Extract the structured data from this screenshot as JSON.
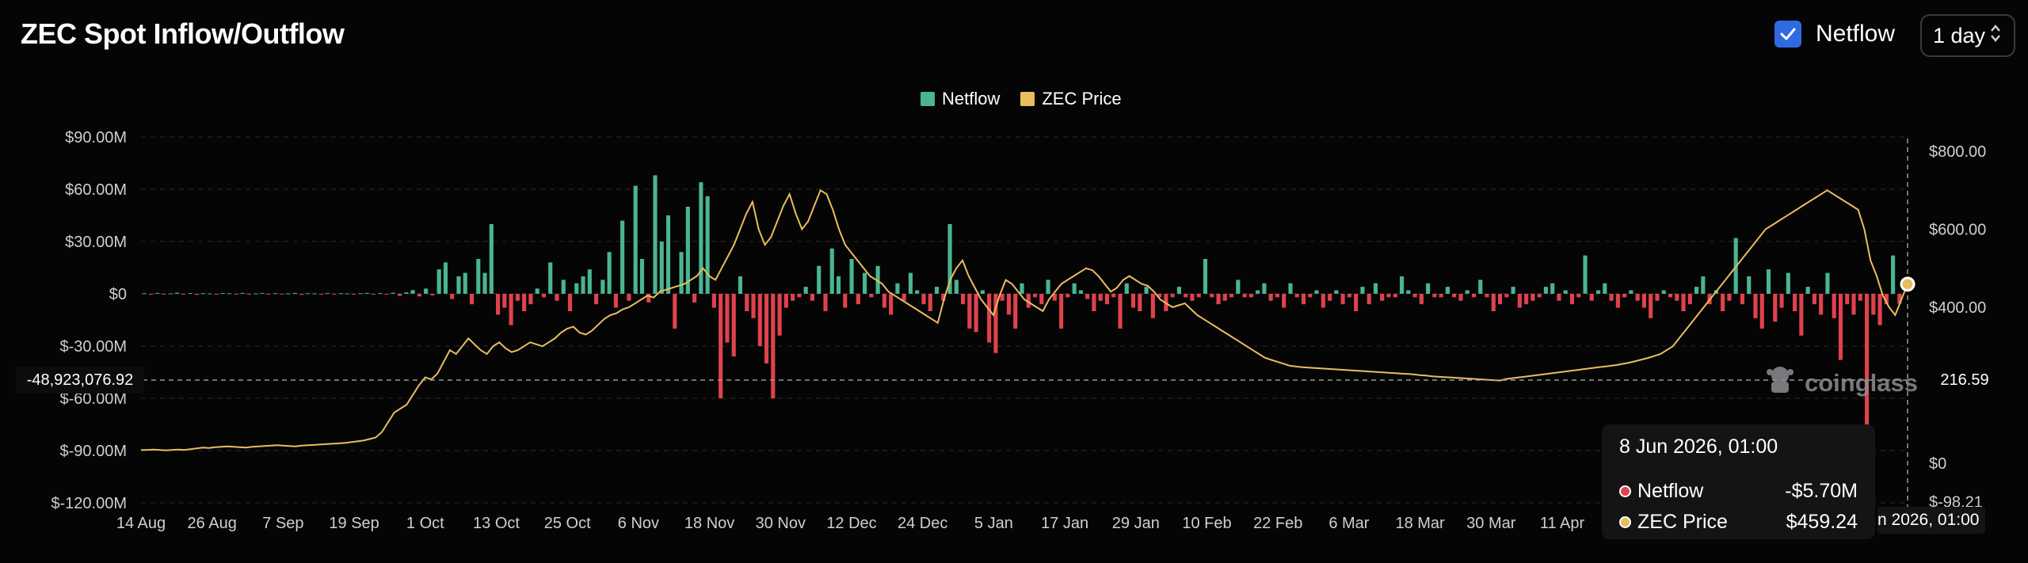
{
  "header": {
    "title": "ZEC Spot Inflow/Outflow",
    "netflow_toggle_label": "Netflow",
    "interval_value": "1 day"
  },
  "legend": {
    "netflow_label": "Netflow",
    "price_label": "ZEC Price"
  },
  "colors": {
    "inflow": "#4ab591",
    "outflow": "#e0424c",
    "price": "#e9bd5f",
    "accent": "#2f6be0"
  },
  "watermark": "coinglass",
  "cursor": {
    "left_value": "-48,923,076.92",
    "right_value": "216.59",
    "time_label": "n 2026, 01:00"
  },
  "tooltip": {
    "time": "8 Jun 2026, 01:00",
    "rows": [
      {
        "name": "Netflow",
        "value": "-$5.70M"
      },
      {
        "name": "ZEC Price",
        "value": "$459.24"
      }
    ]
  },
  "chart_data": {
    "type": "bar",
    "left_axis_ticks": [
      {
        "value": 90,
        "label": "$90.00M"
      },
      {
        "value": 60,
        "label": "$60.00M"
      },
      {
        "value": 30,
        "label": "$30.00M"
      },
      {
        "value": 0,
        "label": "$0"
      },
      {
        "value": -30,
        "label": "$-30.00M"
      },
      {
        "value": -60,
        "label": "$-60.00M"
      },
      {
        "value": -90,
        "label": "$-90.00M"
      },
      {
        "value": -120,
        "label": "$-120.00M"
      }
    ],
    "right_axis_ticks": [
      {
        "value": 800,
        "label": "$800.00"
      },
      {
        "value": 600,
        "label": "$600.00"
      },
      {
        "value": 400,
        "label": "$400.00"
      },
      {
        "value": 0,
        "label": "$0"
      },
      {
        "value": -98.21,
        "label": "$-98.21"
      }
    ],
    "x_ticks": [
      "14 Aug",
      "26 Aug",
      "7 Sep",
      "19 Sep",
      "1 Oct",
      "13 Oct",
      "25 Oct",
      "6 Nov",
      "18 Nov",
      "30 Nov",
      "12 Dec",
      "24 Dec",
      "5 Jan",
      "17 Jan",
      "29 Jan",
      "10 Feb",
      "22 Feb",
      "6 Mar",
      "18 Mar",
      "30 Mar",
      "11 Apr"
    ],
    "netflow_series": {
      "name": "Netflow",
      "unit": "M USD",
      "values": [
        0.3,
        -0.2,
        0.5,
        -0.4,
        0.2,
        0.6,
        -0.3,
        0.4,
        -0.6,
        0.3,
        0.2,
        -0.5,
        0.4,
        0.3,
        -0.2,
        0.5,
        -0.3,
        0.2,
        0.4,
        -0.2,
        0.3,
        -0.4,
        0.2,
        0.5,
        -0.6,
        0.3,
        0.2,
        -0.3,
        0.4,
        -0.2,
        0.3,
        0.2,
        -0.4,
        0.3,
        0.5,
        -0.2,
        0.4,
        -0.3,
        0.6,
        -1.2,
        0.8,
        2.1,
        -1.5,
        3.0,
        -0.9,
        14.0,
        18.0,
        -3.0,
        10.0,
        12.0,
        -6.0,
        20.0,
        12.0,
        40.0,
        -12.0,
        -8.0,
        -18.0,
        -4.0,
        -10.0,
        -6.0,
        3.0,
        -2.0,
        18.0,
        -4.0,
        8.0,
        -10.0,
        6.0,
        10.0,
        14.0,
        -6.0,
        8.0,
        24.0,
        -8.0,
        42.0,
        -4.0,
        62.0,
        20.0,
        -5.0,
        68.0,
        30.0,
        45.0,
        -20.0,
        24.0,
        50.0,
        -5.0,
        64.0,
        56.0,
        -8.0,
        -60.0,
        -28.0,
        -36.0,
        10.0,
        -10.0,
        -14.0,
        -30.0,
        -40.0,
        -60.0,
        -24.0,
        -8.0,
        -4.0,
        -2.0,
        4.0,
        -4.0,
        16.0,
        -10.0,
        26.0,
        10.0,
        -8.0,
        20.0,
        -6.0,
        12.0,
        -2.0,
        16.0,
        -8.0,
        -12.0,
        6.0,
        -4.0,
        12.0,
        2.0,
        -6.0,
        -10.0,
        4.0,
        -4.0,
        40.0,
        8.0,
        -6.0,
        -20.0,
        -22.0,
        2.0,
        -28.0,
        -34.0,
        -4.0,
        -12.0,
        -20.0,
        6.0,
        -8.0,
        -2.0,
        -6.0,
        8.0,
        -4.0,
        -20.0,
        -2.0,
        6.0,
        2.0,
        -3.0,
        -10.0,
        -4.0,
        -6.0,
        -2.0,
        -20.0,
        6.0,
        -8.0,
        -10.0,
        4.0,
        -14.0,
        -2.0,
        -10.0,
        -2.0,
        4.0,
        -2.0,
        -4.0,
        -2.0,
        20.0,
        -2.0,
        -6.0,
        -4.0,
        -2.0,
        8.0,
        -2.0,
        -2.0,
        2.0,
        6.0,
        -4.0,
        -2.0,
        -8.0,
        6.0,
        -2.0,
        -6.0,
        -2.0,
        2.0,
        -8.0,
        -4.0,
        2.0,
        -6.0,
        -2.0,
        -10.0,
        4.0,
        -6.0,
        6.0,
        -4.0,
        -2.0,
        -2.0,
        10.0,
        2.0,
        -2.0,
        -6.0,
        6.0,
        -2.0,
        -2.0,
        4.0,
        -2.0,
        -4.0,
        2.0,
        -2.0,
        8.0,
        -2.0,
        -10.0,
        -6.0,
        -2.0,
        4.0,
        -8.0,
        -6.0,
        -4.0,
        -2.0,
        4.0,
        6.0,
        -4.0,
        2.0,
        -6.0,
        -2.0,
        22.0,
        -4.0,
        2.0,
        6.0,
        -4.0,
        -8.0,
        -2.0,
        2.0,
        -4.0,
        -8.0,
        -14.0,
        -4.0,
        2.0,
        -2.0,
        -4.0,
        -10.0,
        -6.0,
        4.0,
        10.0,
        -6.0,
        2.0,
        -10.0,
        -4.0,
        32.0,
        -6.0,
        10.0,
        -14.0,
        -20.0,
        14.0,
        -16.0,
        -8.0,
        12.0,
        -10.0,
        -24.0,
        4.0,
        -6.0,
        -12.0,
        12.0,
        -14.0,
        -38.0,
        -6.0,
        -12.0,
        -4.0,
        -100.0,
        -12.0,
        -18.0,
        -6.0,
        22.0,
        -5.7
      ],
      "positive_color": "inflow",
      "negative_color": "outflow"
    },
    "price_series": {
      "name": "ZEC Price",
      "unit": "USD",
      "values": [
        34,
        34,
        35,
        34,
        33,
        34,
        35,
        34,
        36,
        38,
        40,
        39,
        41,
        42,
        43,
        42,
        41,
        40,
        42,
        43,
        44,
        45,
        46,
        45,
        44,
        43,
        45,
        46,
        47,
        48,
        49,
        50,
        51,
        52,
        54,
        56,
        58,
        62,
        66,
        80,
        105,
        130,
        140,
        150,
        175,
        200,
        220,
        215,
        230,
        260,
        290,
        280,
        300,
        320,
        305,
        290,
        280,
        300,
        310,
        295,
        285,
        290,
        300,
        310,
        305,
        300,
        310,
        320,
        335,
        345,
        350,
        335,
        330,
        340,
        355,
        370,
        380,
        385,
        395,
        400,
        410,
        420,
        430,
        425,
        440,
        445,
        450,
        455,
        460,
        470,
        480,
        500,
        480,
        470,
        500,
        530,
        560,
        600,
        640,
        670,
        600,
        560,
        580,
        620,
        660,
        690,
        640,
        600,
        620,
        660,
        700,
        690,
        650,
        600,
        560,
        540,
        520,
        500,
        480,
        470,
        460,
        440,
        430,
        420,
        410,
        400,
        390,
        380,
        370,
        360,
        420,
        470,
        500,
        520,
        480,
        450,
        420,
        400,
        380,
        430,
        470,
        460,
        440,
        420,
        410,
        400,
        390,
        420,
        440,
        460,
        470,
        480,
        490,
        500,
        495,
        480,
        460,
        440,
        450,
        470,
        480,
        470,
        460,
        455,
        440,
        420,
        410,
        400,
        405,
        410,
        395,
        380,
        370,
        360,
        350,
        340,
        330,
        320,
        310,
        300,
        290,
        280,
        270,
        265,
        260,
        255,
        250,
        248,
        246,
        245,
        244,
        243,
        242,
        241,
        240,
        239,
        238,
        237,
        236,
        235,
        234,
        233,
        232,
        231,
        230,
        229,
        228,
        226,
        225,
        223,
        222,
        221,
        220,
        219,
        218,
        217,
        216,
        215,
        214,
        213,
        212,
        216,
        218,
        220,
        222,
        224,
        226,
        228,
        230,
        232,
        234,
        236,
        238,
        240,
        242,
        244,
        246,
        248,
        250,
        252,
        255,
        258,
        262,
        266,
        270,
        275,
        280,
        290,
        300,
        320,
        340,
        360,
        380,
        400,
        420,
        440,
        460,
        480,
        500,
        520,
        540,
        560,
        580,
        600,
        610,
        620,
        630,
        640,
        650,
        660,
        670,
        680,
        690,
        700,
        690,
        680,
        670,
        660,
        650,
        600,
        520,
        480,
        430,
        400,
        380,
        420,
        459.24
      ],
      "line_color": "price"
    }
  }
}
